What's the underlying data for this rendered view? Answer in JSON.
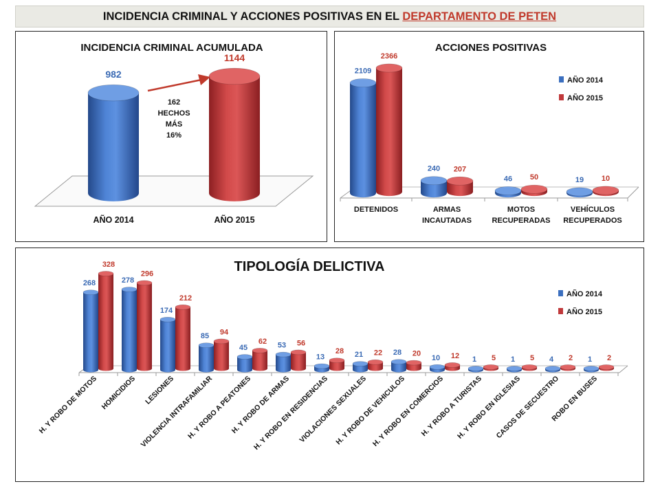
{
  "header": {
    "title_main": "INCIDENCIA CRIMINAL Y ACCIONES POSITIVAS EN EL ",
    "title_highlight": "DEPARTAMENTO  DE PETEN",
    "highlight_color": "#c0392b"
  },
  "colors": {
    "y2014": "#3b6fbf",
    "y2015": "#c0393b",
    "y2014_label": "#3a6ab4",
    "y2015_label": "#c0392b"
  },
  "chart_data": [
    {
      "type": "bar",
      "title": "INCIDENCIA CRIMINAL ACUMULADA",
      "categories": [
        "AÑO 2014",
        "AÑO 2015"
      ],
      "values": [
        982,
        1144
      ],
      "annotation": [
        "162",
        "HECHOS",
        "MÁS",
        "16%"
      ]
    },
    {
      "type": "bar",
      "title": "ACCIONES POSITIVAS",
      "categories": [
        "DETENIDOS",
        "ARMAS\nINCAUTADAS",
        "MOTOS\nRECUPERADAS",
        "VEHÍCULOS\nRECUPERADOS"
      ],
      "series": [
        {
          "name": "AÑO 2014",
          "values": [
            2109,
            240,
            46,
            19
          ]
        },
        {
          "name": "AÑO 2015",
          "values": [
            2366,
            207,
            50,
            10
          ]
        }
      ],
      "legend": "top-right"
    },
    {
      "type": "bar",
      "title": "TIPOLOGÍA DELICTIVA",
      "categories": [
        "H. Y ROBO DE MOTOS",
        "HOMICIDIOS",
        "LESIONES",
        "VIOLENCIA INTRAFAMILIAR",
        "H. Y ROBO A PEATONES",
        "H. Y ROBO DE ARMAS",
        "H. Y ROBO EN RESIDENCIAS",
        "VIOLACIONES SEXUALES",
        "H. Y ROBO DE VEHICULOS",
        "H. Y ROBO EN COMERCIOS",
        "H. Y ROBO A TURISTAS",
        "H. Y ROBO EN IGLESIAS",
        "CASOS DE SECUESTRO",
        "ROBO EN BUSES"
      ],
      "series": [
        {
          "name": "AÑO 2014",
          "values": [
            268,
            278,
            174,
            85,
            45,
            53,
            13,
            21,
            28,
            10,
            1,
            1,
            4,
            1
          ]
        },
        {
          "name": "AÑO 2015",
          "values": [
            328,
            296,
            212,
            94,
            62,
            56,
            28,
            22,
            20,
            12,
            5,
            5,
            2,
            2
          ]
        }
      ],
      "legend": "top-right"
    }
  ]
}
